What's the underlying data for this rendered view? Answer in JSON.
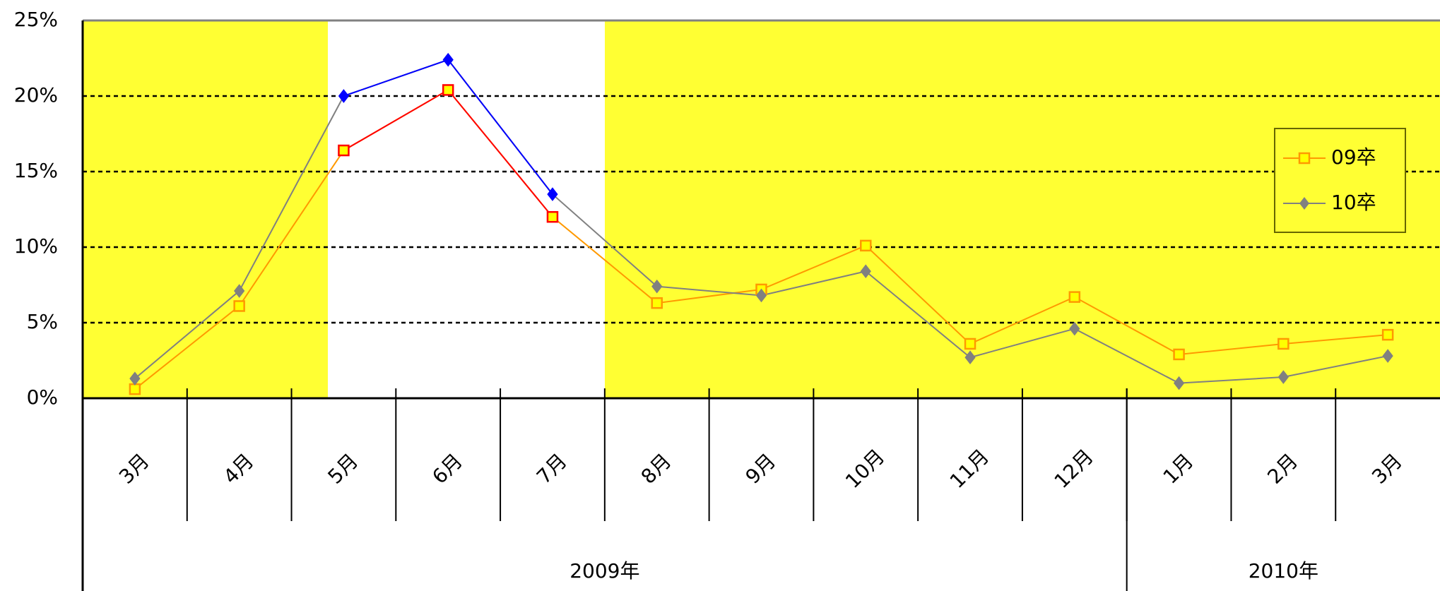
{
  "chart_data": {
    "type": "line",
    "categories": [
      "3月",
      "4月",
      "5月",
      "6月",
      "7月",
      "8月",
      "9月",
      "10月",
      "11月",
      "12月",
      "1月",
      "2月",
      "3月"
    ],
    "groups": [
      {
        "label": "2009年",
        "count": 10
      },
      {
        "label": "2010年",
        "count": 3
      }
    ],
    "series": [
      {
        "name": "09卒",
        "color": "#ff9900",
        "highlight_color": "#ff0000",
        "marker_fill": "#ffff00",
        "values": [
          0.6,
          6.1,
          16.4,
          20.4,
          12.0,
          6.3,
          7.2,
          10.1,
          3.6,
          6.7,
          2.9,
          3.6,
          4.2
        ]
      },
      {
        "name": "10卒",
        "color": "#808080",
        "highlight_color": "#0000ff",
        "marker_fill": "#808080",
        "values": [
          1.3,
          7.1,
          20.0,
          22.4,
          13.5,
          7.4,
          6.8,
          8.4,
          2.7,
          4.6,
          1.0,
          1.4,
          2.8
        ]
      }
    ],
    "ylim": [
      0,
      25
    ],
    "yticks": [
      {
        "value": 0,
        "label": "0%"
      },
      {
        "value": 5,
        "label": "5%"
      },
      {
        "value": 10,
        "label": "10%"
      },
      {
        "value": 15,
        "label": "15%"
      },
      {
        "value": 20,
        "label": "20%"
      },
      {
        "value": 25,
        "label": "25%"
      }
    ],
    "grid": true,
    "legend": "right"
  }
}
